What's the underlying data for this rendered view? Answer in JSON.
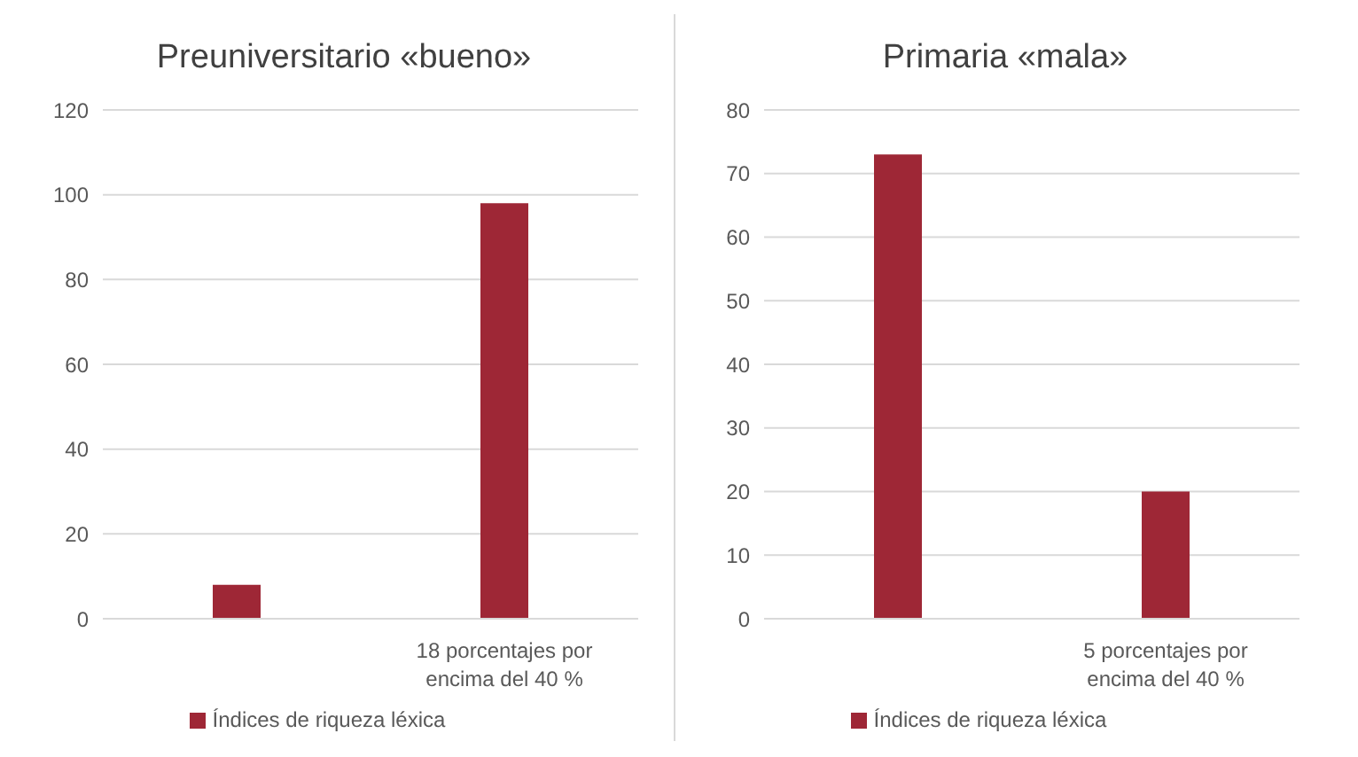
{
  "chart_data": [
    {
      "type": "bar",
      "title": "Preuniversitario «bueno»",
      "categories": [
        null,
        "18 porcentajes por encima del 40 %"
      ],
      "series": [
        {
          "name": "Índices de riqueza léxica",
          "color": "#9e2736",
          "values": [
            8,
            98
          ]
        }
      ],
      "ylim": [
        0,
        120
      ],
      "yticks": [
        0,
        20,
        40,
        60,
        80,
        100,
        120
      ],
      "grid": "y",
      "legend": "bottom"
    },
    {
      "type": "bar",
      "title": "Primaria «mala»",
      "categories": [
        null,
        "5 porcentajes por encima del 40 %"
      ],
      "series": [
        {
          "name": "Índices de riqueza léxica",
          "color": "#9e2736",
          "values": [
            73,
            20
          ]
        }
      ],
      "ylim": [
        0,
        80
      ],
      "yticks": [
        0,
        10,
        20,
        30,
        40,
        50,
        60,
        70,
        80
      ],
      "grid": "y",
      "legend": "bottom"
    }
  ]
}
